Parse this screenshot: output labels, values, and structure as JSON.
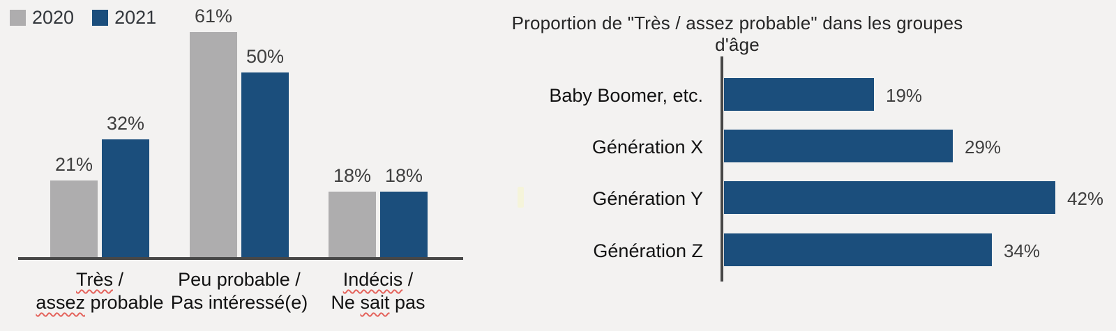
{
  "background_color": "#f3f2f1",
  "colors": {
    "bar_gray": "#aeadae",
    "bar_blue": "#1b4e7c",
    "axis": "#474747",
    "value_label": "#3f3f3f",
    "category_label": "#121212",
    "legend_label": "#33373c",
    "title": "#262626",
    "spellcheck_red": "#e4635c"
  },
  "chart_data": [
    {
      "type": "bar",
      "title": "",
      "legend_position": "top-left",
      "grid": false,
      "unit": "%",
      "ylim": [
        0,
        65
      ],
      "categories": [
        [
          "Très /",
          "assez probable"
        ],
        [
          "Peu probable /",
          "Pas intéressé(e)"
        ],
        [
          "Indécis /",
          "Ne sait pas"
        ]
      ],
      "series": [
        {
          "name": "2020",
          "color_key": "bar_gray",
          "values": [
            21,
            61,
            18
          ]
        },
        {
          "name": "2021",
          "color_key": "bar_blue",
          "values": [
            32,
            50,
            18
          ]
        }
      ],
      "data_labels": [
        [
          "21%",
          "61%",
          "18%"
        ],
        [
          "32%",
          "50%",
          "18%"
        ]
      ],
      "spellchecked_words": [
        "Très",
        "assez",
        "Indécis",
        "sait"
      ]
    },
    {
      "type": "bar-horizontal",
      "title": "Proportion de \"Très / assez probable\" dans les groupes d'âge",
      "grid": false,
      "unit": "%",
      "xlim": [
        0,
        45
      ],
      "categories": [
        "Baby Boomer, etc.",
        "Génération X",
        "Génération Y",
        "Génération Z"
      ],
      "values": [
        19,
        29,
        42,
        34
      ],
      "data_labels": [
        "19%",
        "29%",
        "42%",
        "34%"
      ]
    }
  ]
}
